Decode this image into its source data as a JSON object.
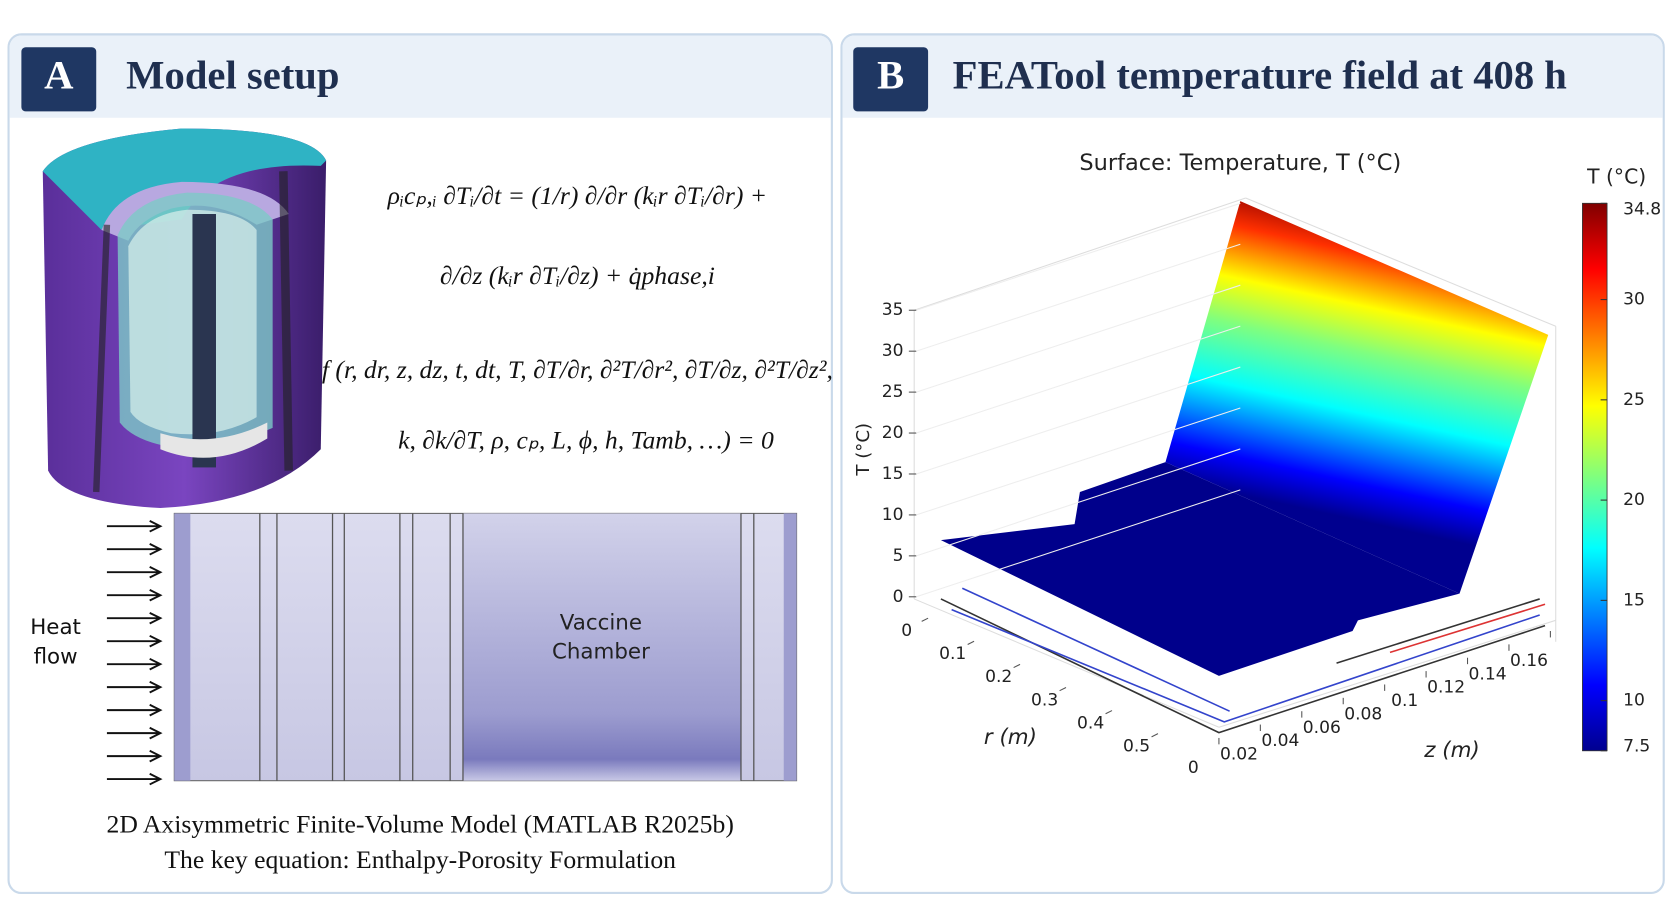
{
  "panel_a": {
    "label": "A",
    "title": "Model setup",
    "equations": [
      "ρᵢcₚ,ᵢ ∂Tᵢ/∂t = (1/r) ∂/∂r (kᵢr ∂Tᵢ/∂r) +",
      "∂/∂z (kᵢr ∂Tᵢ/∂z) + q̇phase,i",
      "f (r, dr, z, dz, t, dt, T, ∂T/∂r, ∂²T/∂r², ∂T/∂z, ∂²T/∂z²,",
      "k, ∂k/∂T, ρ, cₚ, L, ϕ, h, Tamb, …) = 0"
    ],
    "heat_flow": [
      "Heat",
      "flow"
    ],
    "chamber_label": [
      "Vaccine",
      "Chamber"
    ],
    "caption": [
      "2D Axisymmetric Finite-Volume Model (MATLAB R2025b)",
      "The key equation: Enthalpy-Porosity Formulation"
    ]
  },
  "panel_b": {
    "label": "B",
    "title": "FEATool temperature field at 408 h",
    "plot_title": "Surface: Temperature, T (°C)",
    "t_axis": {
      "label": "T (°C)",
      "lim": [
        0,
        35
      ],
      "ticks": [
        0,
        5,
        10,
        15,
        20,
        25,
        30,
        35
      ]
    },
    "r_axis": {
      "label": "r (m)",
      "lim": [
        0,
        0.5
      ],
      "ticks": [
        0,
        0.1,
        0.2,
        0.3,
        0.4,
        0.5
      ]
    },
    "z_axis": {
      "label": "z (m)",
      "lim": [
        0,
        0.16
      ],
      "ticks": [
        0,
        0.02,
        0.04,
        0.06,
        0.08,
        0.1,
        0.12,
        0.14,
        0.16
      ]
    },
    "colorbar": {
      "label": "T (°C)",
      "lim": [
        7.5,
        34.8
      ],
      "ticks": [
        7.5,
        10,
        15,
        20,
        25,
        30,
        34.8
      ]
    }
  }
}
